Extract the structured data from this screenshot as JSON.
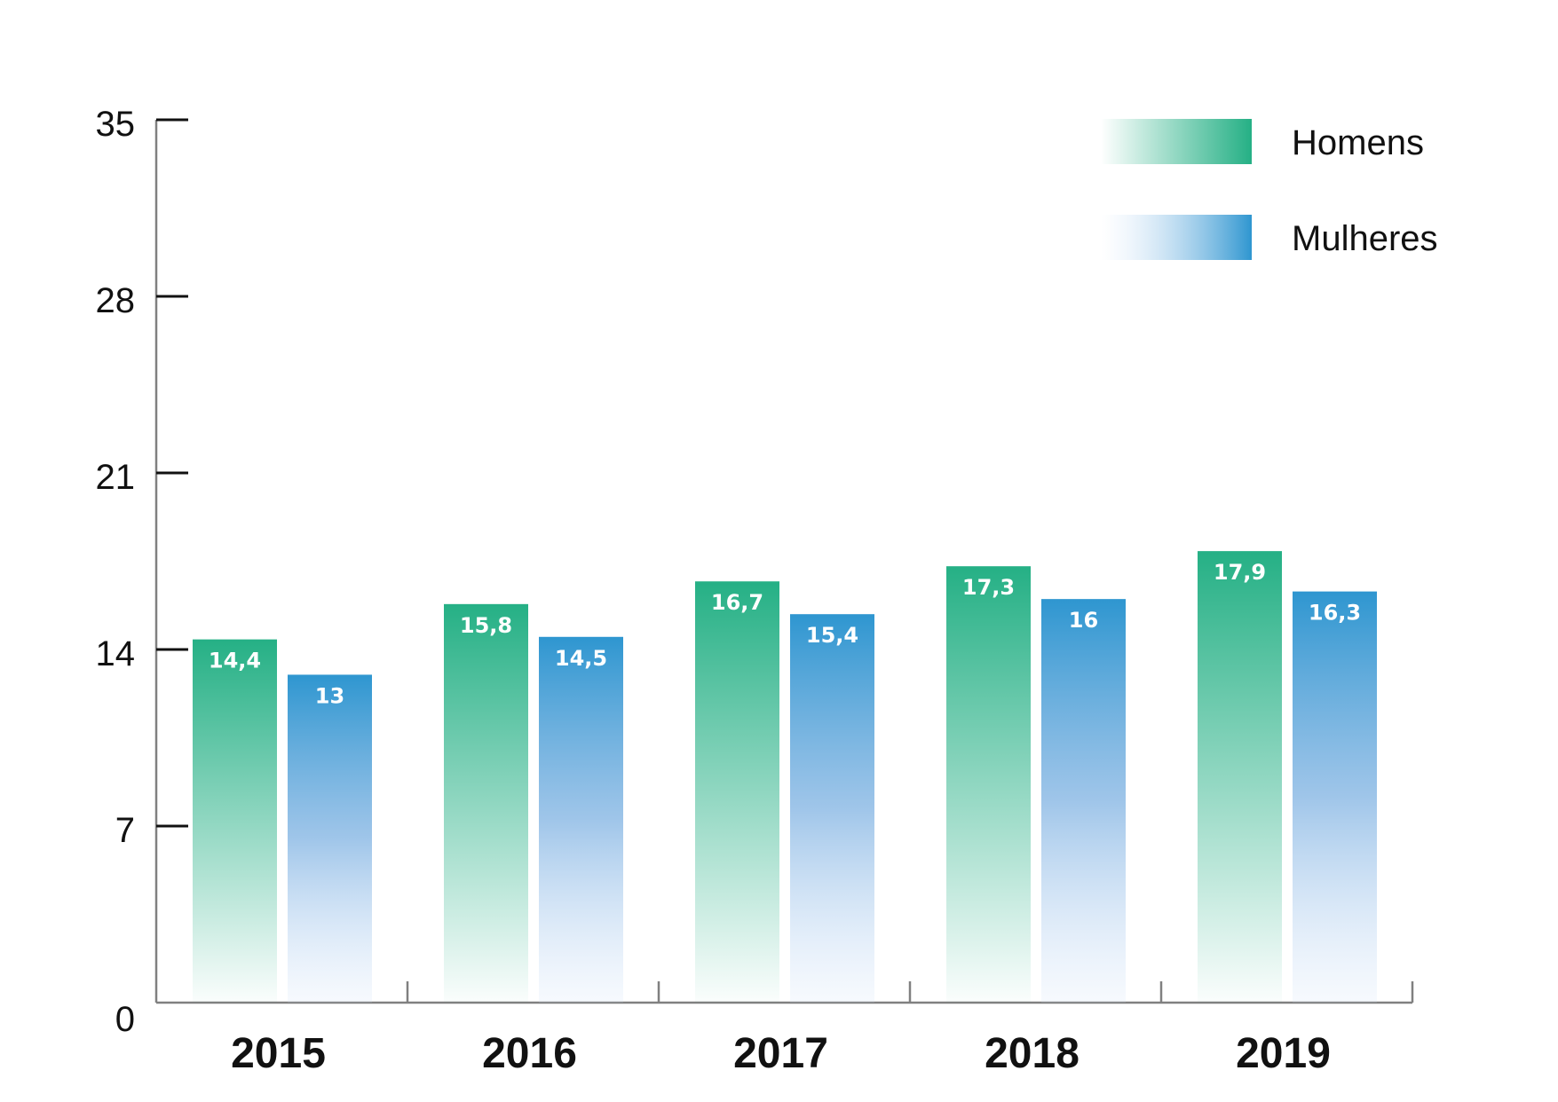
{
  "chart_data": {
    "type": "bar",
    "categories": [
      "2015",
      "2016",
      "2017",
      "2018",
      "2019"
    ],
    "series": [
      {
        "name": "Homens",
        "values": [
          14.4,
          15.8,
          16.7,
          17.3,
          17.9
        ],
        "labels": [
          "14,4",
          "15,8",
          "16,7",
          "17,3",
          "17,9"
        ],
        "color": "#25b085"
      },
      {
        "name": "Mulheres",
        "values": [
          13,
          14.5,
          15.4,
          16,
          16.3
        ],
        "labels": [
          "13",
          "14,5",
          "15,4",
          "16",
          "16,3"
        ],
        "color": "#2e96d0"
      }
    ],
    "y_ticks": [
      "0",
      "7",
      "14",
      "21",
      "28",
      "35"
    ],
    "ylim": [
      0,
      35
    ],
    "title": "",
    "xlabel": "",
    "ylabel": "",
    "legend": "top-right",
    "grid": false
  }
}
